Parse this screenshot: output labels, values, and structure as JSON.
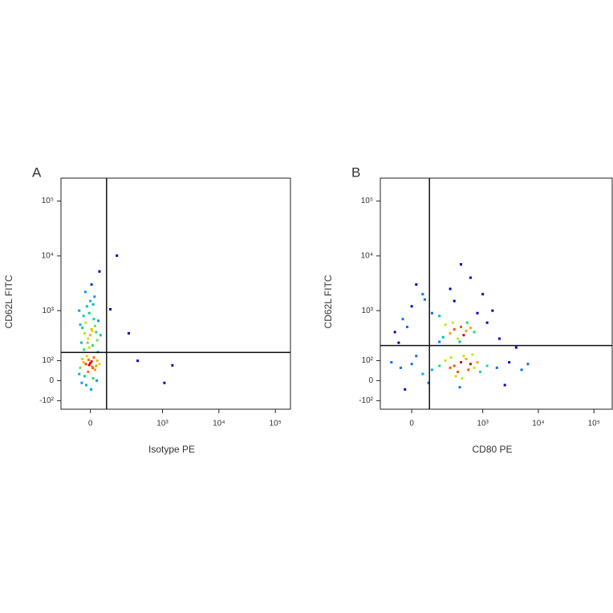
{
  "chart_data": [
    {
      "type": "scatter",
      "panel_label": "A",
      "x_label": "Isotype PE",
      "y_label": "CD62L FITC",
      "x_scale": "biexponential",
      "y_scale": "biexponential",
      "xlim": [
        -160,
        185000
      ],
      "ylim": [
        -160,
        262144
      ],
      "xticks": [
        0,
        {
          "value": 1000,
          "label": "10³"
        },
        {
          "value": 10000,
          "label": "10⁴"
        },
        {
          "value": 100000,
          "label": "10⁵"
        }
      ],
      "yticks": [
        {
          "value": -100,
          "label": "-10²"
        },
        0,
        {
          "value": 100,
          "label": "10²"
        },
        {
          "value": 1000,
          "label": "10³"
        },
        {
          "value": 10000,
          "label": "10⁴"
        },
        {
          "value": 100000,
          "label": "10⁵"
        }
      ],
      "gate": {
        "x": 75,
        "y": 157
      },
      "points": [
        [
          -20,
          80
        ],
        [
          10,
          60
        ],
        [
          -35,
          110
        ],
        [
          5,
          95
        ],
        [
          25,
          70
        ],
        [
          -10,
          40
        ],
        [
          -45,
          60
        ],
        [
          15,
          120
        ],
        [
          -5,
          75
        ],
        [
          30,
          100
        ],
        [
          -25,
          20
        ],
        [
          0,
          85
        ],
        [
          -15,
          130
        ],
        [
          20,
          50
        ],
        [
          -30,
          90
        ],
        [
          8,
          65
        ],
        [
          -8,
          105
        ],
        [
          40,
          80
        ],
        [
          -50,
          30
        ],
        [
          12,
          10
        ],
        [
          -18,
          -20
        ],
        [
          3,
          -40
        ],
        [
          28,
          0
        ],
        [
          -38,
          -10
        ],
        [
          -10,
          300
        ],
        [
          5,
          450
        ],
        [
          -25,
          380
        ],
        [
          20,
          520
        ],
        [
          -40,
          250
        ],
        [
          0,
          350
        ],
        [
          15,
          700
        ],
        [
          -20,
          600
        ],
        [
          30,
          280
        ],
        [
          -5,
          900
        ],
        [
          -35,
          480
        ],
        [
          10,
          220
        ],
        [
          25,
          400
        ],
        [
          -15,
          1200
        ],
        [
          35,
          650
        ],
        [
          -30,
          800
        ],
        [
          0,
          1500
        ],
        [
          -50,
          1000
        ],
        [
          45,
          350
        ],
        [
          -5,
          200
        ],
        [
          18,
          1800
        ],
        [
          -22,
          2200
        ],
        [
          5,
          3000
        ],
        [
          -12,
          250
        ],
        [
          8,
          420
        ],
        [
          -28,
          180
        ],
        [
          33,
          160
        ],
        [
          -45,
          550
        ],
        [
          12,
          1300
        ],
        [
          96,
          1060
        ],
        [
          138,
          10100
        ],
        [
          242,
          380
        ],
        [
          357,
          99
        ],
        [
          1080,
          -10
        ],
        [
          1500,
          73
        ],
        [
          40,
          5200
        ]
      ]
    },
    {
      "type": "scatter",
      "panel_label": "B",
      "x_label": "CD80 PE",
      "y_label": "CD62L FITC",
      "x_scale": "biexponential",
      "y_scale": "biexponential",
      "xlim": [
        -180,
        213000
      ],
      "ylim": [
        -160,
        262144
      ],
      "xticks": [
        0,
        {
          "value": 1000,
          "label": "10³"
        },
        {
          "value": 10000,
          "label": "10⁴"
        },
        {
          "value": 100000,
          "label": "10⁵"
        }
      ],
      "yticks": [
        {
          "value": -100,
          "label": "-10²"
        },
        0,
        {
          "value": 100,
          "label": "10²"
        },
        {
          "value": 1000,
          "label": "10³"
        },
        {
          "value": 10000,
          "label": "10⁴"
        },
        {
          "value": 100000,
          "label": "10⁵"
        }
      ],
      "gate": {
        "x": 85,
        "y": 220
      },
      "points": [
        [
          300,
          70
        ],
        [
          400,
          90
        ],
        [
          250,
          60
        ],
        [
          500,
          110
        ],
        [
          350,
          40
        ],
        [
          600,
          80
        ],
        [
          200,
          100
        ],
        [
          450,
          130
        ],
        [
          700,
          60
        ],
        [
          320,
          20
        ],
        [
          380,
          -30
        ],
        [
          550,
          50
        ],
        [
          800,
          90
        ],
        [
          150,
          70
        ],
        [
          260,
          120
        ],
        [
          420,
          10
        ],
        [
          650,
          140
        ],
        [
          900,
          40
        ],
        [
          1200,
          70
        ],
        [
          1800,
          60
        ],
        [
          3000,
          90
        ],
        [
          5000,
          50
        ],
        [
          6500,
          80
        ],
        [
          2500,
          -20
        ],
        [
          100,
          50
        ],
        [
          50,
          30
        ],
        [
          0,
          80
        ],
        [
          -50,
          60
        ],
        [
          -100,
          90
        ],
        [
          -30,
          -40
        ],
        [
          20,
          130
        ],
        [
          80,
          -10
        ],
        [
          300,
          450
        ],
        [
          250,
          380
        ],
        [
          400,
          500
        ],
        [
          350,
          300
        ],
        [
          200,
          550
        ],
        [
          500,
          420
        ],
        [
          450,
          350
        ],
        [
          600,
          480
        ],
        [
          180,
          320
        ],
        [
          280,
          600
        ],
        [
          700,
          400
        ],
        [
          150,
          260
        ],
        [
          380,
          260
        ],
        [
          520,
          600
        ],
        [
          100,
          900
        ],
        [
          0,
          1200
        ],
        [
          -40,
          700
        ],
        [
          50,
          2000
        ],
        [
          300,
          1500
        ],
        [
          800,
          900
        ],
        [
          1200,
          600
        ],
        [
          1500,
          1000
        ],
        [
          -80,
          400
        ],
        [
          -60,
          250
        ],
        [
          20,
          3000
        ],
        [
          400,
          7000
        ],
        [
          600,
          4000
        ],
        [
          250,
          2500
        ],
        [
          1000,
          2000
        ],
        [
          2000,
          300
        ],
        [
          4000,
          200
        ],
        [
          -20,
          500
        ],
        [
          60,
          1600
        ],
        [
          150,
          800
        ]
      ]
    }
  ]
}
